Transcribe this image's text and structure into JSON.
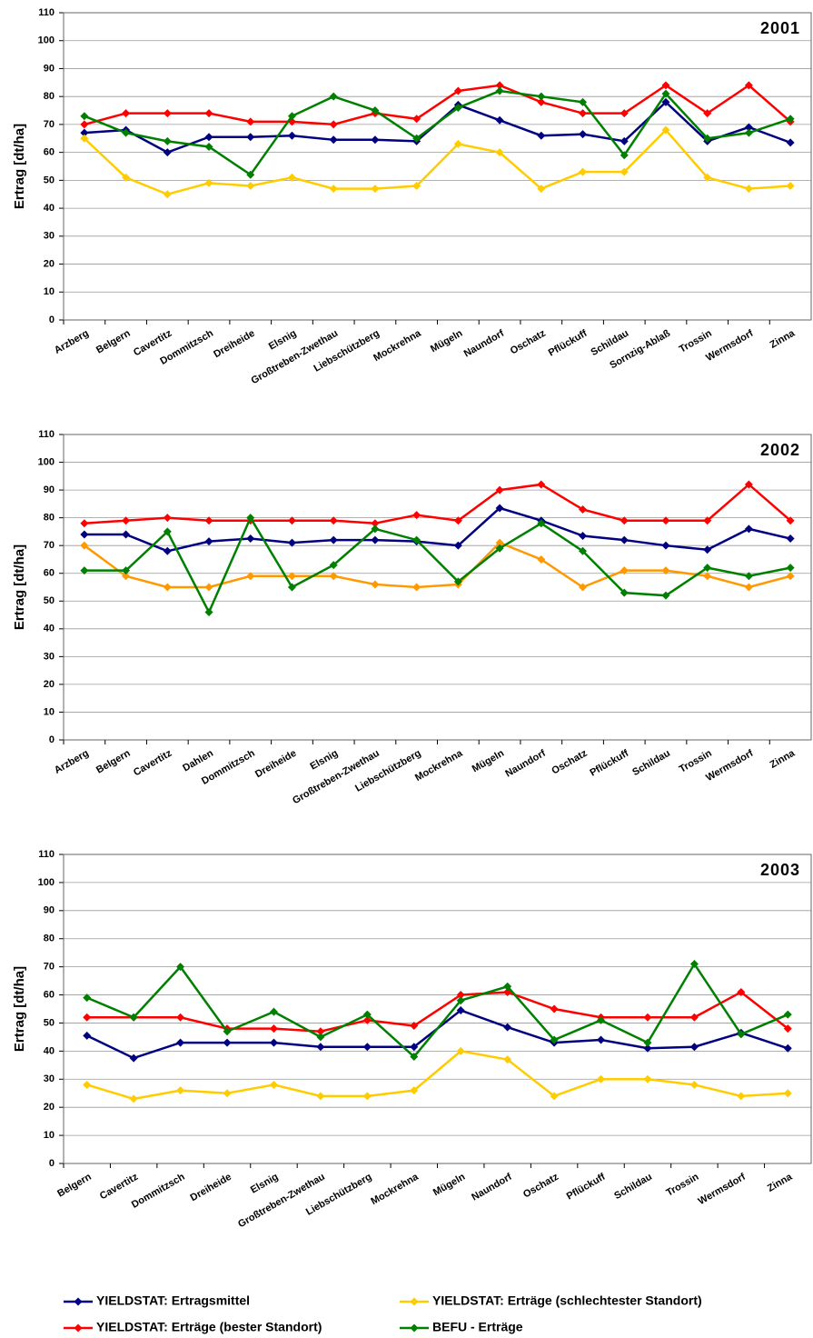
{
  "chart_data": [
    {
      "type": "line",
      "title": "2001",
      "y_label": "Ertrag [dt/ha]",
      "categories": [
        "Arzberg",
        "Belgern",
        "Cavertitz",
        "Dommitzsch",
        "Dreiheide",
        "Elsnig",
        "Großtreben-Zwethau",
        "Liebschützberg",
        "Mockrehna",
        "Mügeln",
        "Naundorf",
        "Oschatz",
        "Pflückuff",
        "Schildau",
        "Sornzig-Ablaß",
        "Trossin",
        "Wermsdorf",
        "Zinna"
      ],
      "series": [
        {
          "color": "#000080",
          "values": [
            67,
            68,
            60,
            65.5,
            65.5,
            66,
            64.5,
            64.5,
            64,
            77,
            71.5,
            66,
            66.5,
            64,
            78,
            64,
            69,
            63.5
          ]
        },
        {
          "color": "#ffcc00",
          "values": [
            65,
            51,
            45,
            49,
            48,
            51,
            47,
            47,
            48,
            63,
            60,
            47,
            53,
            53,
            68,
            51,
            47,
            48
          ]
        },
        {
          "color": "#ff0000",
          "values": [
            70,
            74,
            74,
            74,
            71,
            71,
            70,
            74,
            72,
            82,
            84,
            78,
            74,
            74,
            84,
            74,
            84,
            71
          ]
        },
        {
          "color": "#008000",
          "values": [
            73,
            67,
            64,
            62,
            52,
            73,
            80,
            75,
            65,
            76,
            82,
            80,
            78,
            59,
            81,
            65,
            67,
            72
          ]
        }
      ],
      "ylim": [
        0,
        110
      ],
      "yticks": [
        0,
        10,
        20,
        30,
        40,
        50,
        60,
        70,
        80,
        90,
        100,
        110
      ],
      "grid": true
    },
    {
      "type": "line",
      "title": "2002",
      "y_label": "Ertrag [dt/ha]",
      "categories": [
        "Arzberg",
        "Belgern",
        "Cavertitz",
        "Dahlen",
        "Dommitzsch",
        "Dreiheide",
        "Elsnig",
        "Großtreben-Zwethau",
        "Liebschützberg",
        "Mockrehna",
        "Mügeln",
        "Naundorf",
        "Oschatz",
        "Pflückuff",
        "Schildau",
        "Trossin",
        "Wermsdorf",
        "Zinna"
      ],
      "series": [
        {
          "color": "#000080",
          "values": [
            74,
            74,
            68,
            71.5,
            72.5,
            71,
            72,
            72,
            71.5,
            70,
            83.5,
            79,
            73.5,
            72,
            70,
            68.5,
            76,
            72.5
          ]
        },
        {
          "color": "#ff9900",
          "values": [
            70,
            59,
            55,
            55,
            59,
            59,
            59,
            56,
            55,
            56,
            71,
            65,
            55,
            61,
            61,
            59,
            55,
            59
          ]
        },
        {
          "color": "#ff0000",
          "values": [
            78,
            79,
            80,
            79,
            79,
            79,
            79,
            78,
            81,
            79,
            90,
            92,
            83,
            79,
            79,
            79,
            92,
            79
          ]
        },
        {
          "color": "#008000",
          "values": [
            61,
            61,
            75,
            46,
            80,
            55,
            63,
            76,
            72,
            57,
            69,
            78,
            68,
            53,
            52,
            62,
            59,
            62
          ]
        }
      ],
      "ylim": [
        0,
        110
      ],
      "yticks": [
        0,
        10,
        20,
        30,
        40,
        50,
        60,
        70,
        80,
        90,
        100,
        110
      ],
      "grid": true
    },
    {
      "type": "line",
      "title": "2003",
      "y_label": "Ertrag [dt/ha]",
      "categories": [
        "Belgern",
        "Cavertitz",
        "Dommitzsch",
        "Dreiheide",
        "Elsnig",
        "Großtreben-Zwethau",
        "Liebschützberg",
        "Mockrehna",
        "Mügeln",
        "Naundorf",
        "Oschatz",
        "Pflückuff",
        "Schildau",
        "Trossin",
        "Wermsdorf",
        "Zinna"
      ],
      "series": [
        {
          "name": "YIELDSTAT: Ertragsmittel",
          "color": "#000080",
          "values": [
            45.5,
            37.5,
            43,
            43,
            43,
            41.5,
            41.5,
            41.5,
            54.5,
            48.5,
            43,
            44,
            41,
            41.5,
            46.5,
            41
          ]
        },
        {
          "name": "YIELDSTAT: Erträge (schlechtester Standort)",
          "color": "#ffcc00",
          "values": [
            28,
            23,
            26,
            25,
            28,
            24,
            24,
            26,
            40,
            37,
            24,
            30,
            30,
            28,
            24,
            25
          ]
        },
        {
          "name": "YIELDSTAT: Erträge (bester Standort)",
          "color": "#ff0000",
          "values": [
            52,
            52,
            52,
            48,
            48,
            47,
            51,
            49,
            60,
            61,
            55,
            52,
            52,
            52,
            61,
            48
          ]
        },
        {
          "name": "BEFU - Erträge",
          "color": "#008000",
          "values": [
            59,
            52,
            70,
            47,
            54,
            45,
            53,
            38,
            58,
            63,
            44,
            51,
            43,
            71,
            46,
            53
          ]
        }
      ],
      "ylim": [
        0,
        110
      ],
      "yticks": [
        0,
        10,
        20,
        30,
        40,
        50,
        60,
        70,
        80,
        90,
        100,
        110
      ],
      "grid": true
    }
  ]
}
